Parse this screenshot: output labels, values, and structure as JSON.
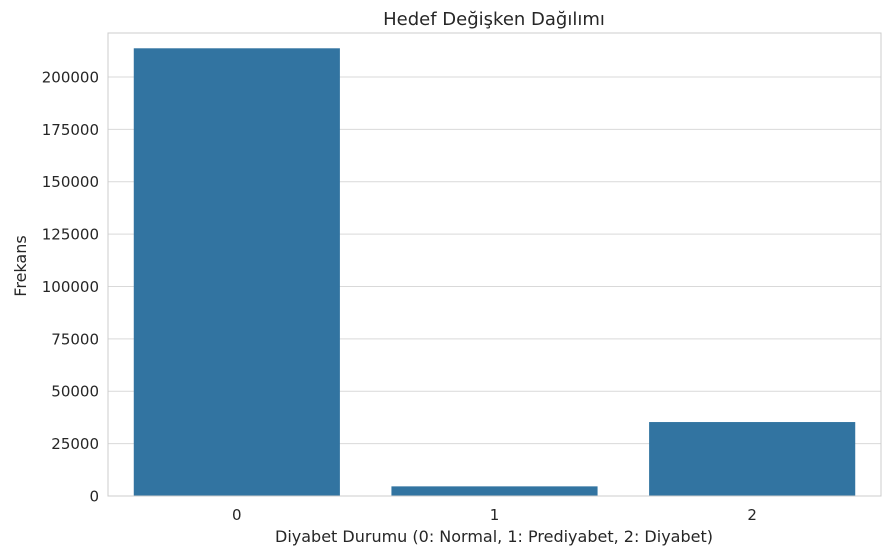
{
  "chart_data": {
    "type": "bar",
    "title": "Hedef Değişken Dağılımı",
    "xlabel": "Diyabet Durumu (0: Normal, 1: Prediyabet, 2: Diyabet)",
    "ylabel": "Frekans",
    "categories": [
      "0",
      "1",
      "2"
    ],
    "values": [
      213700,
      4600,
      35300
    ],
    "ylim": [
      0,
      221000
    ],
    "yticks": [
      0,
      25000,
      50000,
      75000,
      100000,
      125000,
      150000,
      175000,
      200000
    ],
    "ytick_labels": [
      "0",
      "25000",
      "50000",
      "75000",
      "100000",
      "125000",
      "150000",
      "175000",
      "200000"
    ],
    "grid": "horizontal",
    "legend": "none",
    "bar_color": "#3274a1",
    "grid_color": "#d9d9d9",
    "axes_edge_color": "#cccccc"
  }
}
